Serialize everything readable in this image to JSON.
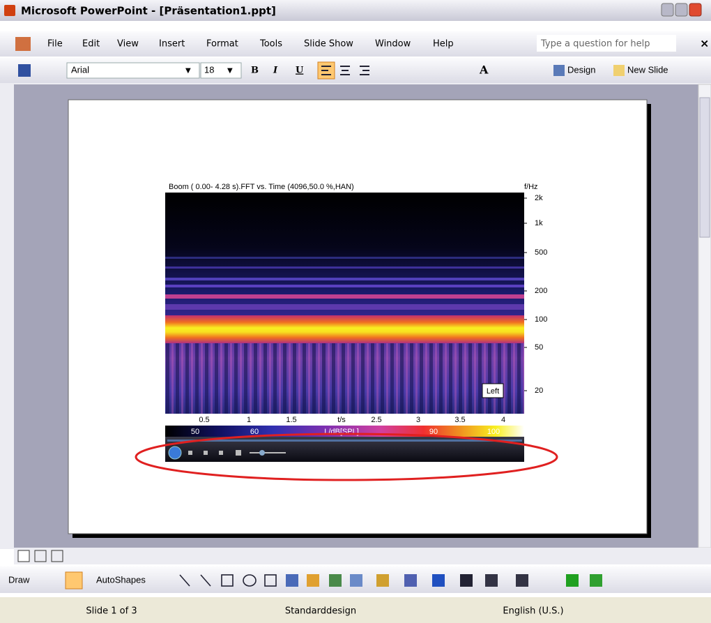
{
  "window": {
    "title": "Microsoft PowerPoint - [Präsentation1.ppt]"
  },
  "menu": {
    "items": [
      "File",
      "Edit",
      "View",
      "Insert",
      "Format",
      "Tools",
      "Slide Show",
      "Window",
      "Help"
    ],
    "help_box": "Type a question for help"
  },
  "toolbar": {
    "font": "Arial",
    "size": "18",
    "bold": "B",
    "italic": "I",
    "underline": "U",
    "grow_font": "A",
    "design": "Design",
    "new_slide": "New Slide"
  },
  "slide": {
    "image": {
      "title": "Boom ( 0.00- 4.28 s).FFT vs. Time (4096,50.0 %,HAN)",
      "y_axis_label": "f/Hz",
      "y_tick_labels": [
        "2k",
        "1k",
        "500",
        "200",
        "100",
        "50",
        "20"
      ],
      "channel": "Left",
      "x_tick_labels": [
        "0.5",
        "1",
        "1.5",
        "t/s",
        "2.5",
        "3",
        "3.5",
        "4"
      ],
      "colorbar_labels": [
        "50",
        "60",
        "L/dB[SPL]",
        "90",
        "100"
      ]
    }
  },
  "drawing_toolbar": {
    "draw": "Draw",
    "autoshapes": "AutoShapes"
  },
  "status_bar": {
    "slide": "Slide 1 of 3",
    "design": "Standarddesign",
    "language": "English (U.S.)"
  }
}
